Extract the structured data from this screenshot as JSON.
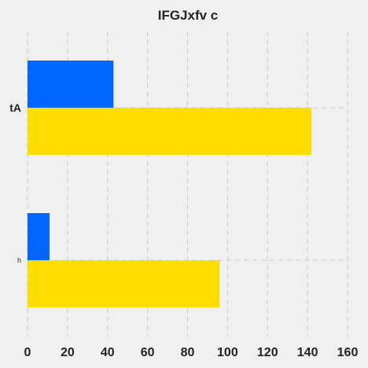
{
  "chart_data": {
    "type": "bar",
    "orientation": "horizontal",
    "title": "IFGJxfv c",
    "xlabel": "",
    "ylabel": "",
    "categories": [
      "tA",
      "h"
    ],
    "series": [
      {
        "color": "#0066ff",
        "values": [
          43,
          11
        ]
      },
      {
        "color": "#ffdd00",
        "values": [
          142,
          96
        ]
      }
    ],
    "xlim": [
      0,
      160
    ],
    "xticks": [
      0,
      20,
      40,
      60,
      80,
      100,
      120,
      140,
      160
    ],
    "grid": true,
    "legend": "none"
  }
}
